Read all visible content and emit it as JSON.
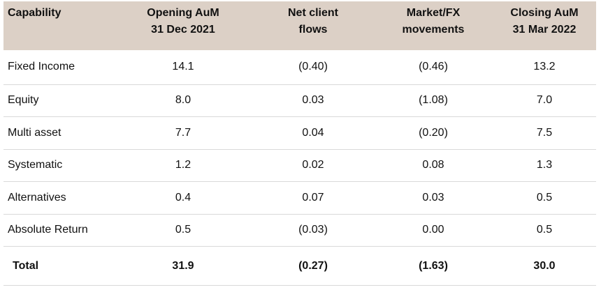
{
  "table": {
    "headers": [
      "Capability",
      "Opening AuM\n31 Dec 2021",
      "Net client\nflows",
      "Market/FX\nmovements",
      "Closing AuM\n31 Mar 2022"
    ],
    "rows": [
      [
        "Fixed Income",
        "14.1",
        "(0.40)",
        "(0.46)",
        "13.2"
      ],
      [
        "Equity",
        "8.0",
        "0.03",
        "(1.08)",
        "7.0"
      ],
      [
        "Multi asset",
        "7.7",
        "0.04",
        "(0.20)",
        "7.5"
      ],
      [
        "Systematic",
        "1.2",
        "0.02",
        "0.08",
        "1.3"
      ],
      [
        "Alternatives",
        "0.4",
        "0.07",
        "0.03",
        "0.5"
      ],
      [
        "Absolute Return",
        "0.5",
        "(0.03)",
        "0.00",
        "0.5"
      ]
    ],
    "total": [
      "Total",
      "31.9",
      "(0.27)",
      "(1.63)",
      "30.0"
    ]
  },
  "colors": {
    "header_background": "#dcd0c6",
    "row_divider": "#d9d9d9"
  }
}
